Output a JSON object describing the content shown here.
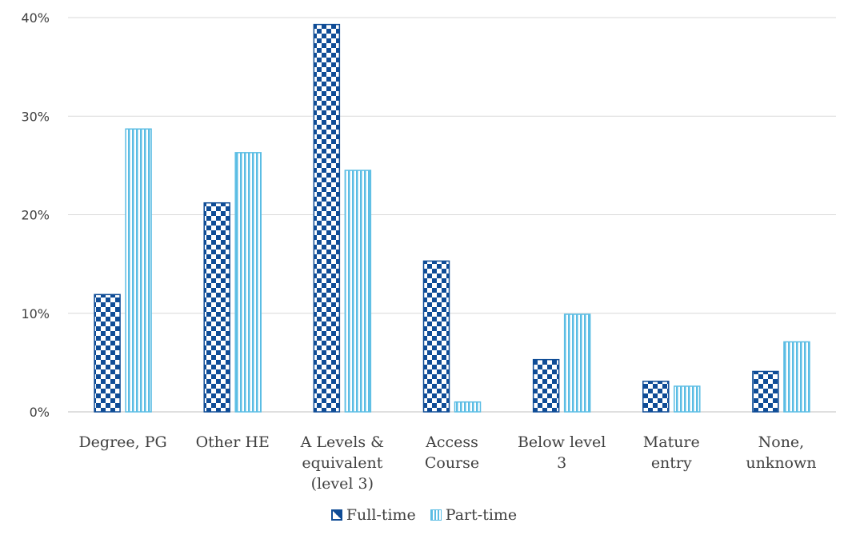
{
  "chart_data": {
    "type": "bar",
    "categories": [
      [
        "Degree, PG"
      ],
      [
        "Other HE"
      ],
      [
        "A Levels &",
        "equivalent",
        "(level 3)"
      ],
      [
        "Access",
        "Course"
      ],
      [
        "Below level",
        "3"
      ],
      [
        "Mature",
        "entry"
      ],
      [
        "None,",
        "unknown"
      ]
    ],
    "series": [
      {
        "name": "Full-time",
        "values": [
          11.9,
          21.2,
          39.3,
          15.3,
          5.3,
          3.1,
          4.1
        ],
        "color": "#0f4c96",
        "pattern": "checker"
      },
      {
        "name": "Part-time",
        "values": [
          28.7,
          26.3,
          24.5,
          1.0,
          9.9,
          2.6,
          7.1
        ],
        "color": "#5bbde4",
        "pattern": "vertical-stripes"
      }
    ],
    "y_ticks": [
      "0%",
      "10%",
      "20%",
      "30%",
      "40%"
    ],
    "ylim": [
      0,
      40
    ],
    "grid": true,
    "legend_position": "bottom",
    "title": "",
    "xlabel": "",
    "ylabel": ""
  },
  "legend": {
    "full_time": "Full-time",
    "part_time": "Part-time"
  }
}
